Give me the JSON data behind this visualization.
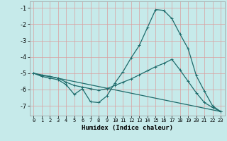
{
  "xlabel": "Humidex (Indice chaleur)",
  "xlim": [
    -0.5,
    23.5
  ],
  "ylim": [
    -7.6,
    -0.6
  ],
  "yticks": [
    -1,
    -2,
    -3,
    -4,
    -5,
    -6,
    -7
  ],
  "xticks": [
    0,
    1,
    2,
    3,
    4,
    5,
    6,
    7,
    8,
    9,
    10,
    11,
    12,
    13,
    14,
    15,
    16,
    17,
    18,
    19,
    20,
    21,
    22,
    23
  ],
  "background_color": "#c6eaea",
  "grid_color_v": "#d9a0a0",
  "grid_color_h": "#d9a0a0",
  "line_color": "#1e6b6b",
  "line1_x": [
    0,
    1,
    2,
    3,
    4,
    5,
    6,
    7,
    8,
    9,
    10,
    11,
    12,
    13,
    14,
    15,
    16,
    17,
    18,
    19,
    20,
    21,
    22,
    23
  ],
  "line1_y": [
    -5.0,
    -5.2,
    -5.3,
    -5.4,
    -5.7,
    -6.3,
    -5.95,
    -6.75,
    -6.8,
    -6.4,
    -5.6,
    -4.9,
    -4.05,
    -3.3,
    -2.2,
    -1.1,
    -1.15,
    -1.65,
    -2.6,
    -3.5,
    -5.15,
    -6.1,
    -7.0,
    -7.35
  ],
  "line2_x": [
    0,
    1,
    2,
    3,
    4,
    5,
    6,
    7,
    8,
    9,
    10,
    11,
    12,
    13,
    14,
    15,
    16,
    17,
    18,
    19,
    20,
    21,
    22,
    23
  ],
  "line2_y": [
    -5.0,
    -5.15,
    -5.2,
    -5.3,
    -5.55,
    -5.75,
    -5.85,
    -5.95,
    -6.05,
    -5.95,
    -5.75,
    -5.55,
    -5.35,
    -5.1,
    -4.85,
    -4.6,
    -4.4,
    -4.15,
    -4.8,
    -5.5,
    -6.2,
    -6.8,
    -7.1,
    -7.35
  ],
  "line3_x": [
    0,
    23
  ],
  "line3_y": [
    -5.0,
    -7.35
  ]
}
